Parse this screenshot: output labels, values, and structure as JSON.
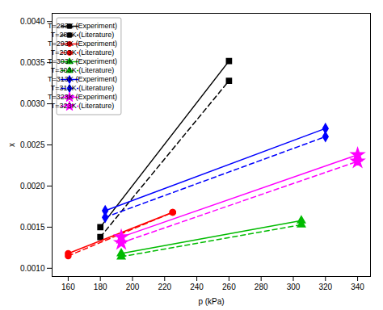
{
  "chart_data": {
    "type": "line",
    "xlabel": "p (kPa)",
    "ylabel": "x",
    "xlim": [
      150,
      348
    ],
    "ylim": [
      0.0009,
      0.0041
    ],
    "xticks": [
      160,
      180,
      200,
      220,
      240,
      260,
      280,
      300,
      320,
      340
    ],
    "yticks": [
      {
        "value": 0.001,
        "label": "0.0010"
      },
      {
        "value": 0.0015,
        "label": "0.0015"
      },
      {
        "value": 0.002,
        "label": "0.0020"
      },
      {
        "value": 0.0025,
        "label": "0.0025"
      },
      {
        "value": 0.003,
        "label": "0.0030"
      },
      {
        "value": 0.0035,
        "label": "0.0035"
      },
      {
        "value": 0.004,
        "label": "0.0040"
      }
    ],
    "grid": false,
    "legend": "upper left",
    "series": [
      {
        "name": "T=283K (Experiment)",
        "color": "#000000",
        "line_style": "solid",
        "marker": "square",
        "x": [
          180,
          260
        ],
        "values": [
          0.0015,
          0.00352
        ]
      },
      {
        "name": "T=283K (Literature)",
        "color": "#000000",
        "line_style": "dashed",
        "marker": "square",
        "x": [
          180,
          260
        ],
        "values": [
          0.00138,
          0.00328
        ]
      },
      {
        "name": "T=293K (Experiment)",
        "color": "#ff0000",
        "line_style": "solid",
        "marker": "circle",
        "x": [
          160,
          225
        ],
        "values": [
          0.00118,
          0.00168
        ]
      },
      {
        "name": "T=293K (Literature)",
        "color": "#ff0000",
        "line_style": "dashed",
        "marker": "circle",
        "x": [
          160,
          225
        ],
        "values": [
          0.00115,
          0.00168
        ]
      },
      {
        "name": "T=303K (Experiment)",
        "color": "#00bb00",
        "line_style": "solid",
        "marker": "triangle",
        "x": [
          193,
          305
        ],
        "values": [
          0.00118,
          0.00158
        ]
      },
      {
        "name": "T=303K (Literature)",
        "color": "#00bb00",
        "line_style": "dashed",
        "marker": "triangle",
        "x": [
          193,
          305
        ],
        "values": [
          0.00114,
          0.00153
        ]
      },
      {
        "name": "T=313K (Experiment)",
        "color": "#0000ff",
        "line_style": "solid",
        "marker": "diamond",
        "x": [
          183,
          320
        ],
        "values": [
          0.0017,
          0.0027
        ]
      },
      {
        "name": "T=313K (Literature)",
        "color": "#0000ff",
        "line_style": "dashed",
        "marker": "diamond",
        "x": [
          183,
          320
        ],
        "values": [
          0.00162,
          0.0026
        ]
      },
      {
        "name": "T=323K (Experiment)",
        "color": "#ff00ff",
        "line_style": "solid",
        "marker": "star",
        "x": [
          193,
          340
        ],
        "values": [
          0.00138,
          0.00238
        ]
      },
      {
        "name": "T=323K (Literature)",
        "color": "#ff00ff",
        "line_style": "dashed",
        "marker": "star",
        "x": [
          193,
          340
        ],
        "values": [
          0.00131,
          0.0023
        ]
      }
    ]
  }
}
